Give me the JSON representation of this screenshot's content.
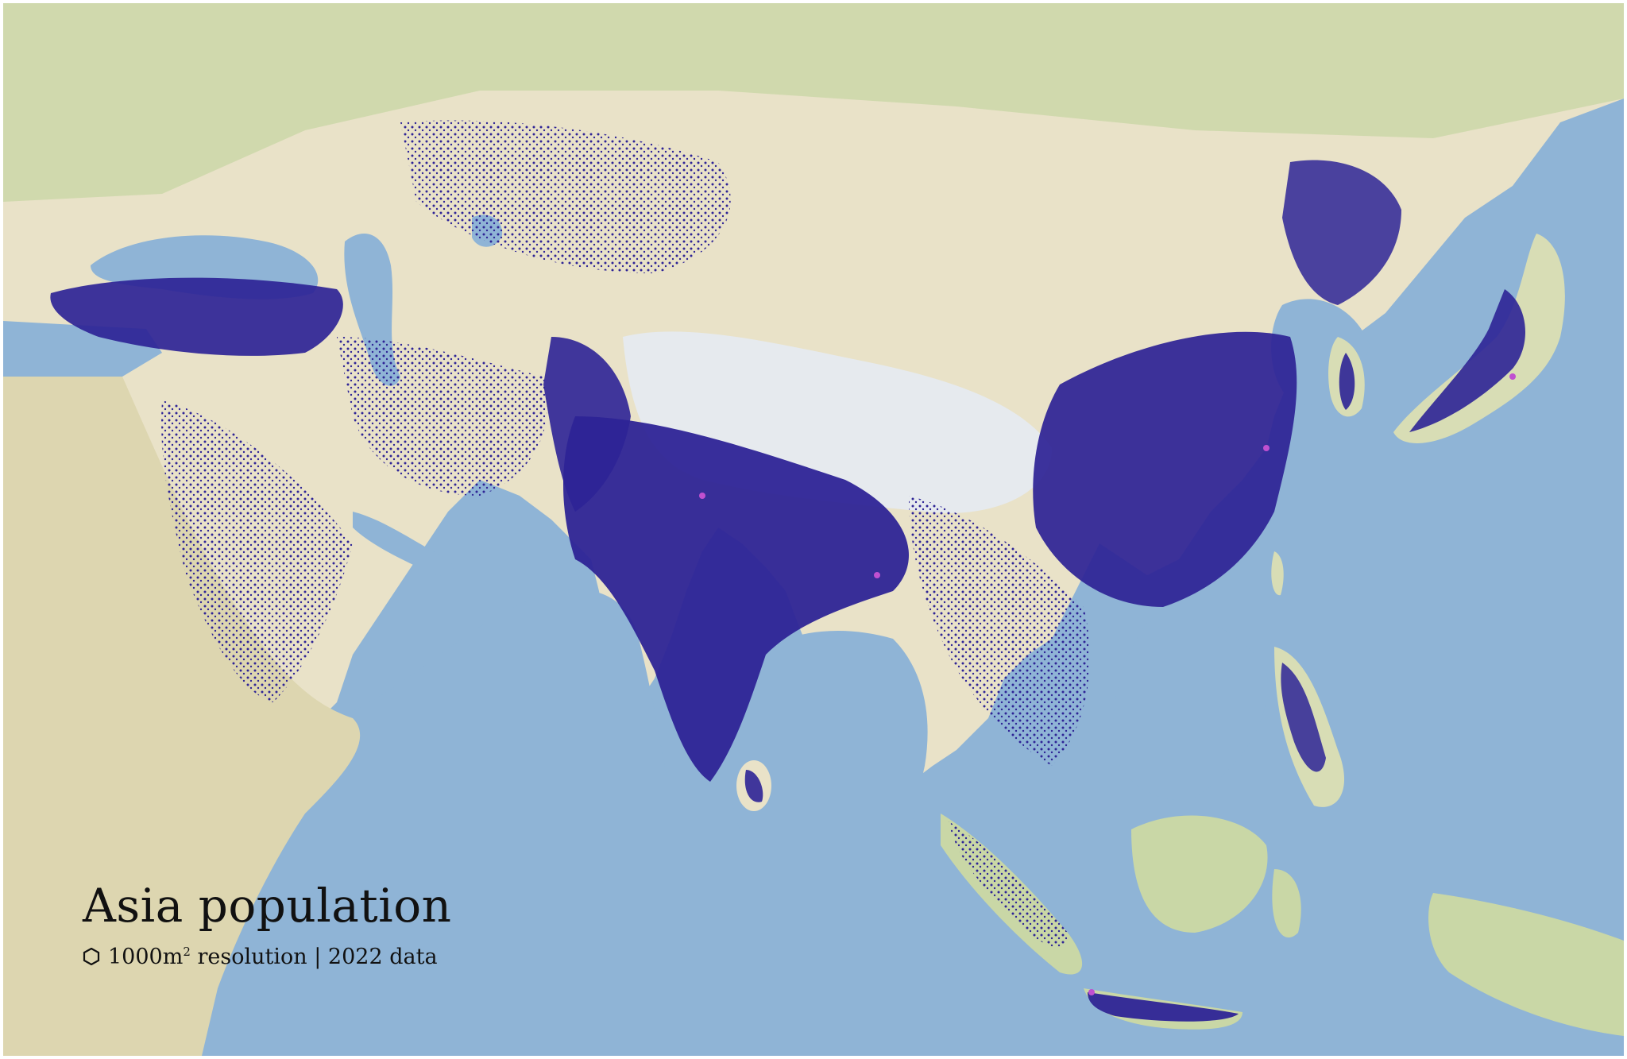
{
  "map": {
    "title": "Asia population",
    "subtitle": {
      "icon": "hexagon-icon",
      "resolution_value": "1000m",
      "resolution_superscript": "2",
      "resolution_word": "resolution",
      "separator": "|",
      "data_year_text": "2022 data"
    },
    "colors": {
      "ocean": "#8fb4d6",
      "land": "#e9e2c8",
      "vegetation": "#c9d7a6",
      "mountains": "#e6eaee",
      "population": "#2e2496",
      "dense_population": "#3a1f8f",
      "urban_hotspot": "#c050d0"
    }
  }
}
